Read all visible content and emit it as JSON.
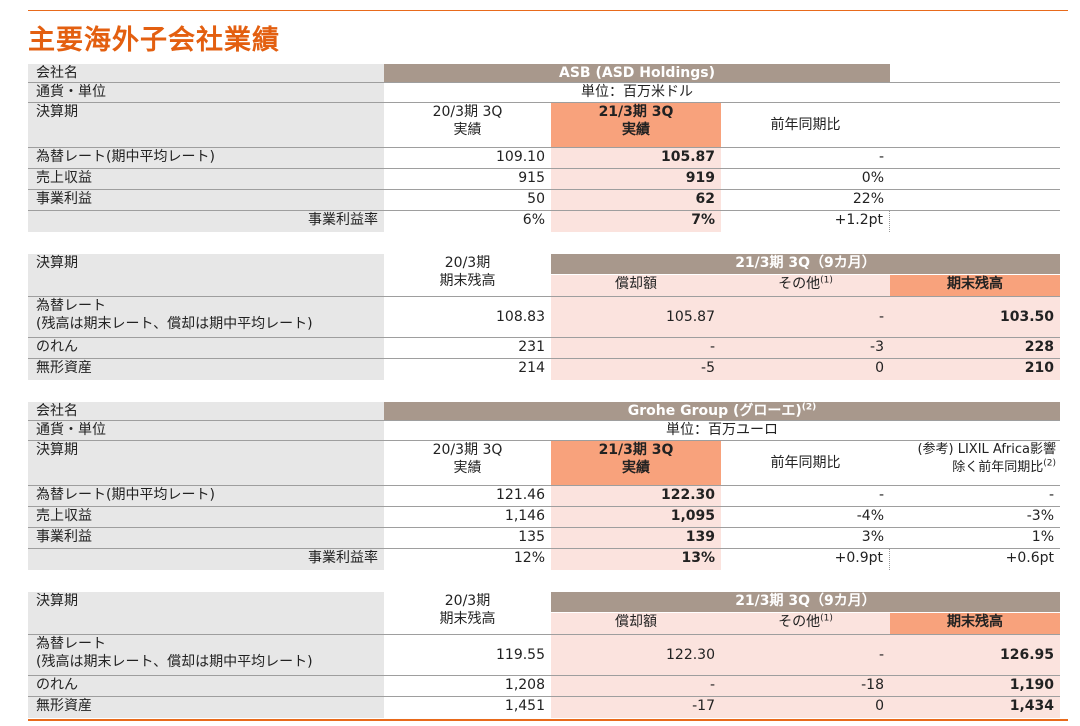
{
  "title": "主要海外子会社業績",
  "asb_results": {
    "company_label": "会社名",
    "company": "ASB (ASD Holdings)",
    "currency_label": "通貨・単位",
    "currency": "単位：百万米ドル",
    "period_label": "決算期",
    "col_prev_1": "20/3期 3Q",
    "col_prev_2": "実績",
    "col_cur_1": "21/3期 3Q",
    "col_cur_2": "実績",
    "col_yoy": "前年同期比",
    "rows": [
      {
        "label": "為替レート(期中平均レート)",
        "prev": "109.10",
        "cur": "105.87",
        "yoy": "-"
      },
      {
        "label": "売上収益",
        "prev": "915",
        "cur": "919",
        "yoy": "0%"
      },
      {
        "label": "事業利益",
        "prev": "50",
        "cur": "62",
        "yoy": "22%"
      },
      {
        "label": "事業利益率",
        "prev": "6%",
        "cur": "7%",
        "yoy": "+1.2pt"
      }
    ]
  },
  "asb_balance": {
    "period_label": "決算期",
    "col_prev_1": "20/3期",
    "col_prev_2": "期末残高",
    "group_header": "21/3期 3Q（9カ月）",
    "col_amort": "償却額",
    "col_other": "その他",
    "col_other_note": "(1)",
    "col_end": "期末残高",
    "rate_label_1": "為替レート",
    "rate_label_2": "(残高は期末レート、償却は期中平均レート)",
    "rate": {
      "prev": "108.83",
      "amort": "105.87",
      "other": "-",
      "end": "103.50"
    },
    "rows": [
      {
        "label": "のれん",
        "prev": "231",
        "amort": "-",
        "other": "-3",
        "end": "228"
      },
      {
        "label": "無形資産",
        "prev": "214",
        "amort": "-5",
        "other": "0",
        "end": "210"
      }
    ]
  },
  "grohe_results": {
    "company_label": "会社名",
    "company": "Grohe Group (グローエ)",
    "company_note": "(2)",
    "currency_label": "通貨・単位",
    "currency": "単位：百万ユーロ",
    "period_label": "決算期",
    "col_prev_1": "20/3期 3Q",
    "col_prev_2": "実績",
    "col_cur_1": "21/3期 3Q",
    "col_cur_2": "実績",
    "col_yoy": "前年同期比",
    "col_ref_1": "(参考) LIXIL Africa影響",
    "col_ref_2": "除く前年同期比",
    "col_ref_note": "(2)",
    "rows": [
      {
        "label": "為替レート(期中平均レート)",
        "prev": "121.46",
        "cur": "122.30",
        "yoy": "-",
        "ref": "-"
      },
      {
        "label": "売上収益",
        "prev": "1,146",
        "cur": "1,095",
        "yoy": "-4%",
        "ref": "-3%"
      },
      {
        "label": "事業利益",
        "prev": "135",
        "cur": "139",
        "yoy": "3%",
        "ref": "1%"
      },
      {
        "label": "事業利益率",
        "prev": "12%",
        "cur": "13%",
        "yoy": "+0.9pt",
        "ref": "+0.6pt"
      }
    ]
  },
  "grohe_balance": {
    "period_label": "決算期",
    "col_prev_1": "20/3期",
    "col_prev_2": "期末残高",
    "group_header": "21/3期 3Q（9カ月）",
    "col_amort": "償却額",
    "col_other": "その他",
    "col_other_note": "(1)",
    "col_end": "期末残高",
    "rate_label_1": "為替レート",
    "rate_label_2": "(残高は期末レート、償却は期中平均レート)",
    "rate": {
      "prev": "119.55",
      "amort": "122.30",
      "other": "-",
      "end": "126.95"
    },
    "rows": [
      {
        "label": "のれん",
        "prev": "1,208",
        "amort": "-",
        "other": "-18",
        "end": "1,190"
      },
      {
        "label": "無形資産",
        "prev": "1,451",
        "amort": "-17",
        "other": "0",
        "end": "1,434"
      }
    ]
  }
}
